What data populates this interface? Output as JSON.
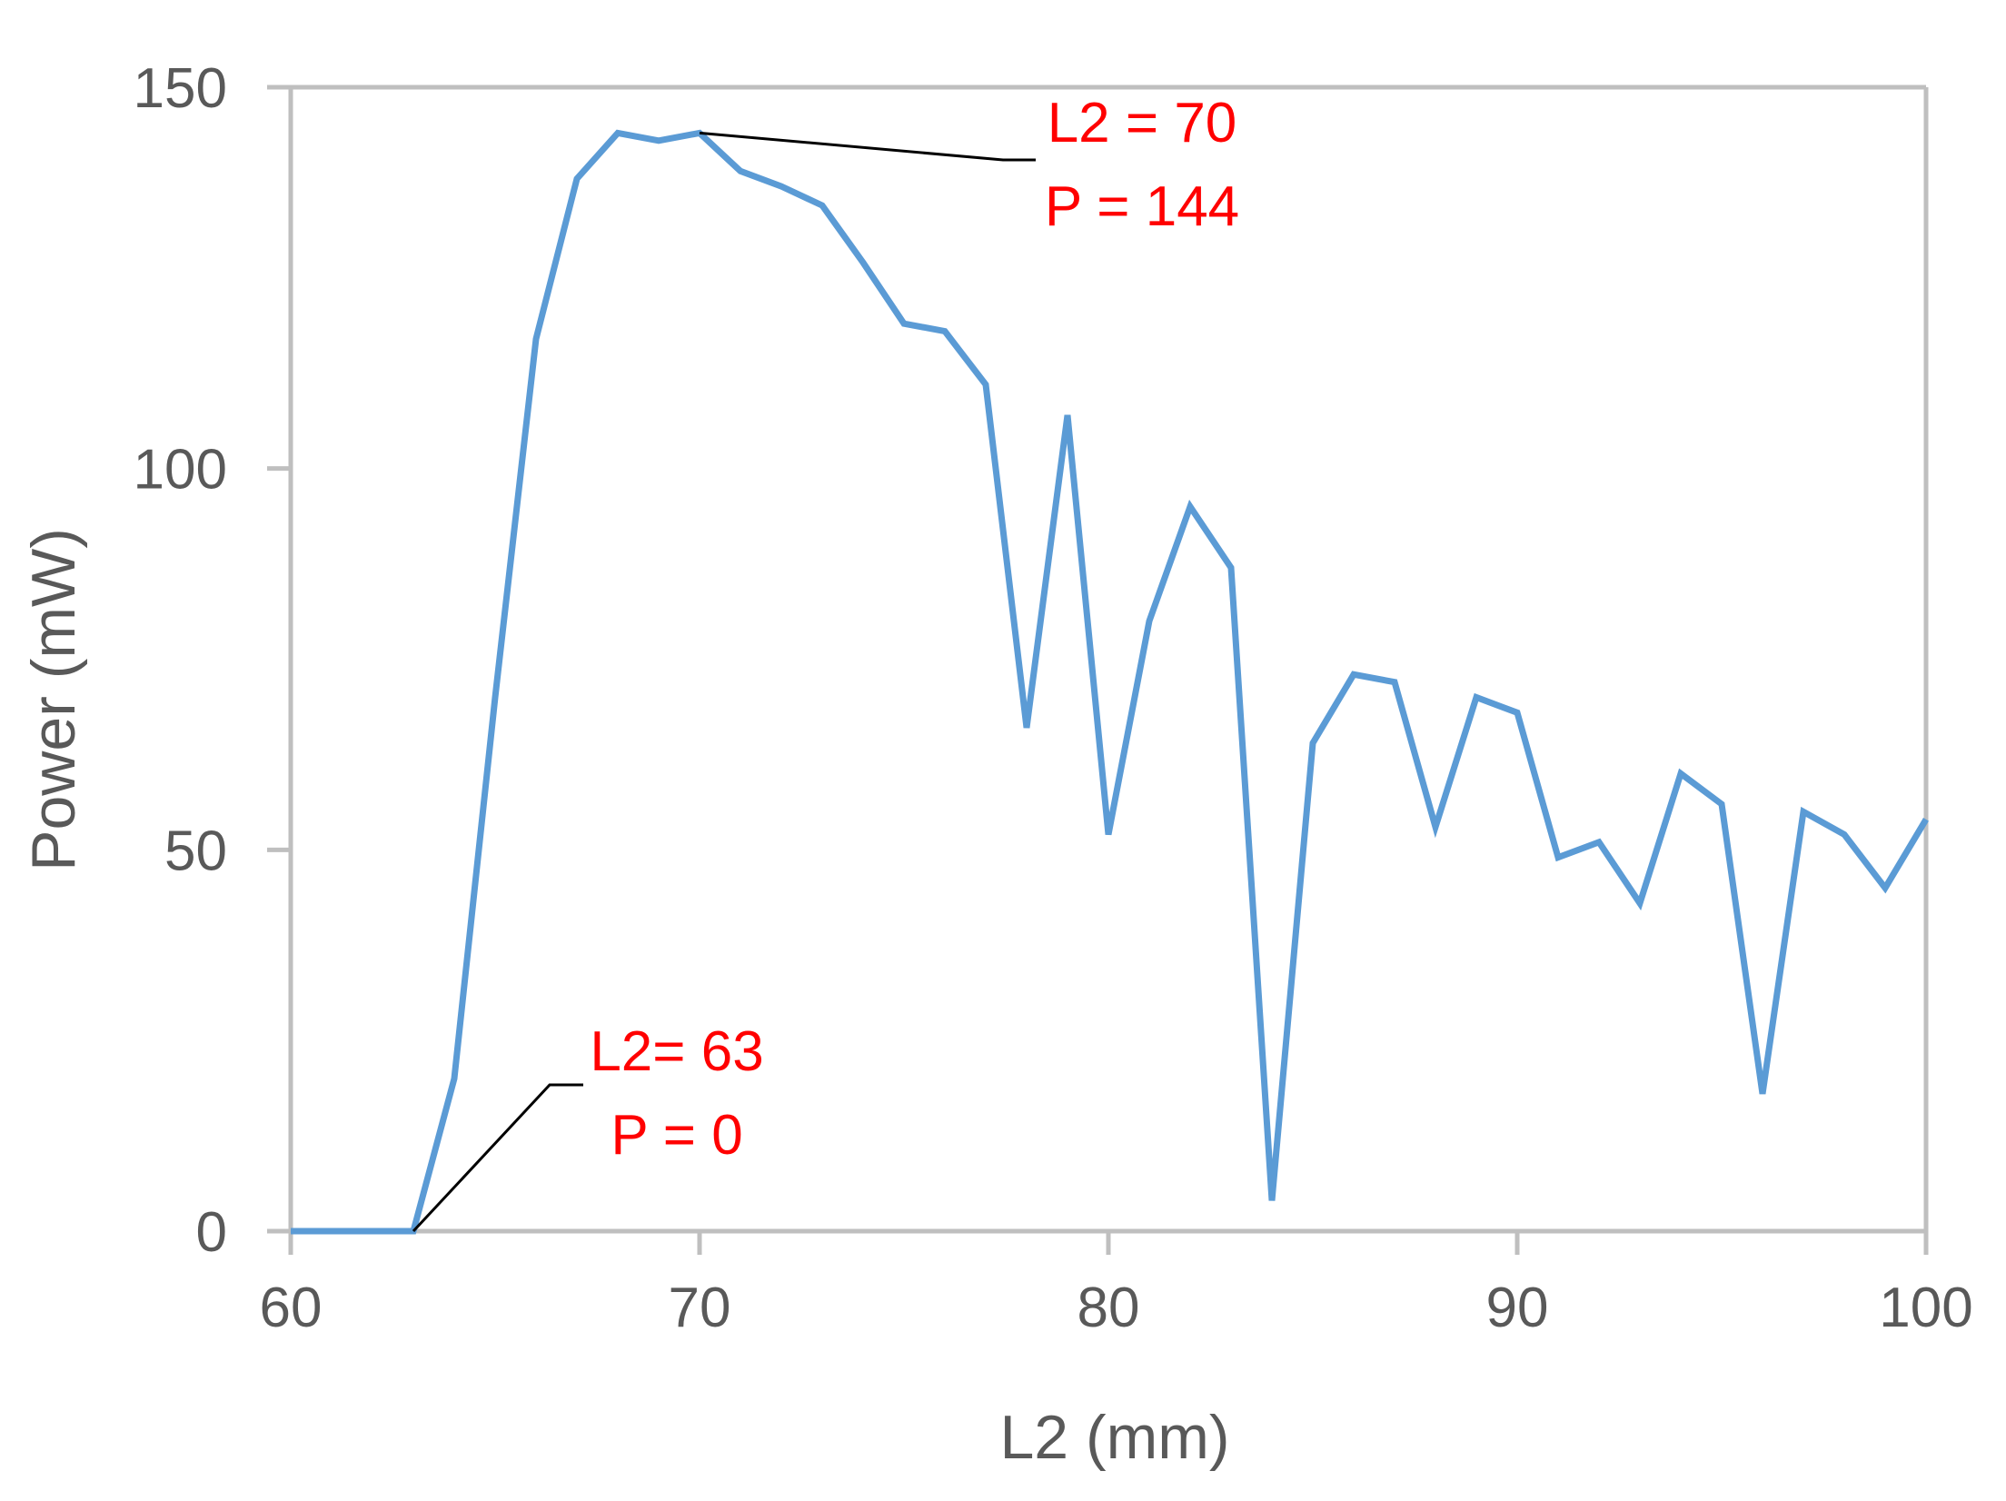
{
  "chart_data": {
    "type": "line",
    "title": "",
    "xlabel": "L2 (mm)",
    "ylabel": "Power (mW)",
    "xlim": [
      60,
      100
    ],
    "ylim": [
      0,
      150
    ],
    "x_ticks": [
      "60",
      "70",
      "80",
      "90",
      "100"
    ],
    "y_ticks": [
      "0",
      "50",
      "100",
      "150"
    ],
    "grid": false,
    "legend": "none",
    "series": [
      {
        "color": "#5b9bd5",
        "points": [
          [
            60,
            0
          ],
          [
            61,
            0
          ],
          [
            62,
            0
          ],
          [
            63,
            0
          ],
          [
            64,
            20
          ],
          [
            65,
            70
          ],
          [
            66,
            117
          ],
          [
            67,
            138
          ],
          [
            68,
            144
          ],
          [
            69,
            143
          ],
          [
            70,
            144
          ],
          [
            71,
            139
          ],
          [
            72,
            137
          ],
          [
            73,
            134.5
          ],
          [
            74,
            127
          ],
          [
            75,
            119
          ],
          [
            76,
            118
          ],
          [
            77,
            111
          ],
          [
            78,
            66
          ],
          [
            79,
            107
          ],
          [
            80,
            52
          ],
          [
            81,
            80
          ],
          [
            82,
            95
          ],
          [
            83,
            87
          ],
          [
            84,
            4
          ],
          [
            85,
            64
          ],
          [
            86,
            73
          ],
          [
            87,
            72
          ],
          [
            88,
            53
          ],
          [
            89,
            70
          ],
          [
            90,
            68
          ],
          [
            91,
            49
          ],
          [
            92,
            51
          ],
          [
            93,
            43
          ],
          [
            94,
            60
          ],
          [
            95,
            56
          ],
          [
            96,
            18
          ],
          [
            97,
            55
          ],
          [
            98,
            52
          ],
          [
            99,
            45
          ],
          [
            100,
            54
          ]
        ]
      }
    ],
    "annotations": [
      {
        "line1": "L2 = 70",
        "line2": "P = 144",
        "point": [
          70,
          144
        ],
        "color": "#ff0000"
      },
      {
        "line1": "L2= 63",
        "line2": "P = 0",
        "point": [
          63,
          0
        ],
        "color": "#ff0000"
      }
    ],
    "colors": {
      "series": "#5b9bd5",
      "annotation_text": "#ff0000",
      "leader_line": "#000000",
      "axis": "#bfbfbf",
      "text": "#595959"
    }
  }
}
